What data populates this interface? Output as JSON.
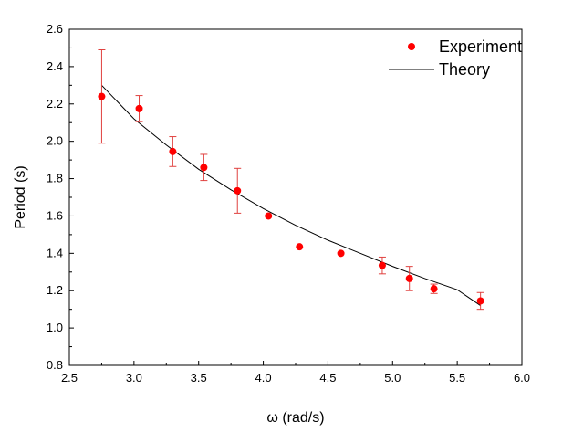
{
  "chart_data": {
    "type": "scatter",
    "title": "",
    "xlabel": "ω (rad/s)",
    "ylabel": "Period (s)",
    "xlim": [
      2.5,
      6.0
    ],
    "ylim": [
      0.8,
      2.6
    ],
    "x_ticks": [
      2.5,
      3.0,
      3.5,
      4.0,
      4.5,
      5.0,
      5.5,
      6.0
    ],
    "y_ticks": [
      0.8,
      1.0,
      1.2,
      1.4,
      1.6,
      1.8,
      2.0,
      2.2,
      2.4,
      2.6
    ],
    "grid": false,
    "legend_position": "top-right",
    "series": [
      {
        "name": "Experiment",
        "kind": "scatter-with-error-bars",
        "color": "#ff0000",
        "errorbar_color": "#e0413f",
        "x": [
          2.75,
          3.04,
          3.3,
          3.54,
          3.8,
          4.04,
          4.28,
          4.6,
          4.92,
          5.13,
          5.32,
          5.68
        ],
        "y": [
          2.24,
          2.175,
          1.945,
          1.86,
          1.735,
          1.6,
          1.435,
          1.4,
          1.335,
          1.265,
          1.21,
          1.145
        ],
        "yerr": [
          0.25,
          0.07,
          0.08,
          0.07,
          0.12,
          0.0,
          0.0,
          0.0,
          0.045,
          0.065,
          0.025,
          0.045
        ]
      },
      {
        "name": "Theory",
        "kind": "line",
        "color": "#000000",
        "x": [
          2.75,
          3.0,
          3.25,
          3.5,
          3.75,
          4.0,
          4.25,
          4.5,
          4.75,
          5.0,
          5.25,
          5.5,
          5.68
        ],
        "y": [
          2.3,
          2.12,
          1.98,
          1.85,
          1.74,
          1.64,
          1.55,
          1.47,
          1.4,
          1.33,
          1.265,
          1.205,
          1.12
        ]
      }
    ]
  }
}
